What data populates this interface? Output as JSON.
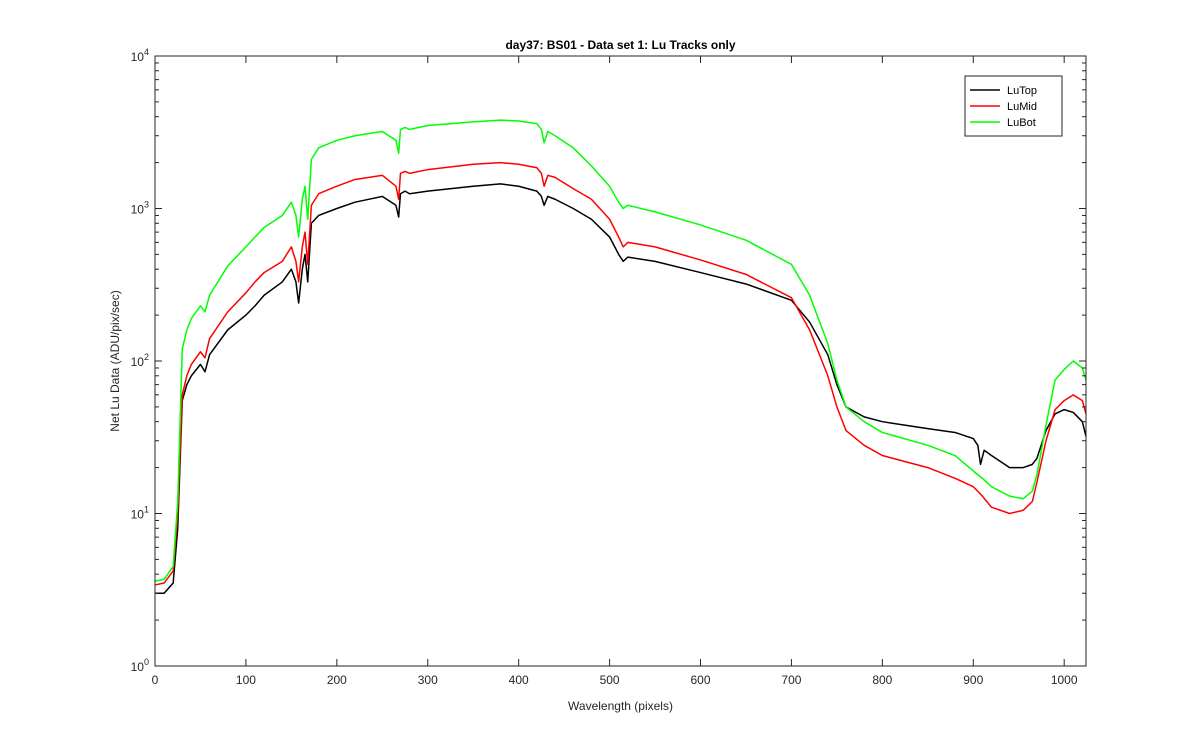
{
  "chart_data": {
    "type": "line",
    "title": "day37: BS01 - Data set 1: Lu Tracks only",
    "xlabel": "Wavelength (pixels)",
    "ylabel": "Net Lu Data (ADU/pix/sec)",
    "xlim": [
      0,
      1024
    ],
    "ylim": [
      1,
      10000
    ],
    "yscale": "log",
    "grid": false,
    "legend_position": "top-right",
    "xticks": [
      0,
      100,
      200,
      300,
      400,
      500,
      600,
      700,
      800,
      900,
      1000
    ],
    "xtick_labels": [
      "0",
      "100",
      "200",
      "300",
      "400",
      "500",
      "600",
      "700",
      "800",
      "900",
      "1000"
    ],
    "yticks": [
      1,
      10,
      100,
      1000,
      10000
    ],
    "ytick_labels": [
      {
        "base": "10",
        "exp": "0"
      },
      {
        "base": "10",
        "exp": "1"
      },
      {
        "base": "10",
        "exp": "2"
      },
      {
        "base": "10",
        "exp": "3"
      },
      {
        "base": "10",
        "exp": "4"
      }
    ],
    "series": [
      {
        "name": "LuTop",
        "color": "#000000",
        "x": [
          0,
          10,
          20,
          25,
          30,
          35,
          40,
          50,
          55,
          60,
          80,
          100,
          110,
          120,
          140,
          150,
          155,
          158,
          162,
          165,
          168,
          172,
          180,
          200,
          220,
          250,
          265,
          268,
          270,
          275,
          280,
          300,
          350,
          380,
          400,
          420,
          425,
          428,
          432,
          440,
          460,
          480,
          500,
          510,
          515,
          520,
          550,
          600,
          650,
          700,
          720,
          740,
          750,
          760,
          780,
          800,
          850,
          880,
          900,
          905,
          908,
          912,
          920,
          940,
          955,
          965,
          970,
          980,
          990,
          1000,
          1010,
          1020,
          1024
        ],
        "y": [
          3,
          3,
          3.5,
          8,
          55,
          70,
          80,
          95,
          85,
          110,
          160,
          200,
          230,
          270,
          330,
          400,
          330,
          240,
          400,
          500,
          330,
          800,
          900,
          1000,
          1100,
          1200,
          1050,
          880,
          1250,
          1300,
          1250,
          1300,
          1400,
          1450,
          1400,
          1300,
          1200,
          1050,
          1200,
          1150,
          1000,
          850,
          650,
          500,
          450,
          480,
          450,
          380,
          320,
          250,
          180,
          110,
          70,
          50,
          43,
          40,
          36,
          34,
          31,
          28,
          21,
          26,
          24,
          20,
          20,
          21,
          23,
          35,
          45,
          48,
          46,
          40,
          32
        ]
      },
      {
        "name": "LuMid",
        "color": "#ff0000",
        "x": [
          0,
          10,
          20,
          25,
          30,
          35,
          40,
          50,
          55,
          60,
          80,
          100,
          110,
          120,
          140,
          150,
          155,
          158,
          162,
          165,
          168,
          172,
          180,
          200,
          220,
          250,
          265,
          268,
          270,
          275,
          280,
          300,
          350,
          380,
          400,
          420,
          425,
          428,
          432,
          440,
          460,
          480,
          500,
          510,
          515,
          520,
          550,
          600,
          650,
          700,
          720,
          740,
          750,
          760,
          780,
          800,
          850,
          880,
          900,
          910,
          920,
          940,
          955,
          965,
          970,
          980,
          990,
          1000,
          1010,
          1020,
          1024
        ],
        "y": [
          3.4,
          3.5,
          4.2,
          10,
          60,
          80,
          95,
          115,
          105,
          140,
          210,
          280,
          330,
          380,
          450,
          560,
          450,
          330,
          560,
          700,
          430,
          1050,
          1250,
          1400,
          1550,
          1650,
          1400,
          1150,
          1700,
          1750,
          1700,
          1800,
          1950,
          2000,
          1950,
          1850,
          1700,
          1400,
          1650,
          1600,
          1350,
          1150,
          850,
          650,
          560,
          600,
          560,
          460,
          370,
          260,
          160,
          80,
          50,
          35,
          28,
          24,
          20,
          17,
          15,
          13,
          11,
          10,
          10.5,
          12,
          16,
          30,
          48,
          55,
          60,
          55,
          45
        ]
      },
      {
        "name": "LuBot",
        "color": "#00ff00",
        "x": [
          0,
          10,
          20,
          25,
          30,
          35,
          40,
          50,
          55,
          60,
          80,
          100,
          110,
          120,
          140,
          150,
          155,
          158,
          162,
          165,
          168,
          172,
          180,
          200,
          220,
          250,
          265,
          268,
          270,
          275,
          280,
          300,
          350,
          380,
          400,
          420,
          425,
          428,
          432,
          440,
          460,
          480,
          500,
          510,
          515,
          520,
          550,
          600,
          650,
          700,
          720,
          740,
          750,
          760,
          780,
          800,
          850,
          880,
          900,
          910,
          920,
          940,
          955,
          965,
          970,
          980,
          990,
          1000,
          1010,
          1020,
          1024
        ],
        "y": [
          3.6,
          3.7,
          4.5,
          12,
          120,
          160,
          190,
          230,
          210,
          270,
          420,
          560,
          650,
          750,
          900,
          1100,
          900,
          650,
          1150,
          1400,
          850,
          2100,
          2500,
          2800,
          3000,
          3200,
          2800,
          2300,
          3300,
          3400,
          3300,
          3500,
          3700,
          3800,
          3750,
          3600,
          3300,
          2700,
          3200,
          3000,
          2500,
          1900,
          1400,
          1100,
          1000,
          1050,
          950,
          780,
          620,
          430,
          270,
          130,
          75,
          50,
          40,
          34,
          28,
          24,
          19,
          17,
          15,
          13,
          12.5,
          14,
          18,
          38,
          75,
          88,
          100,
          90,
          75
        ]
      }
    ]
  }
}
